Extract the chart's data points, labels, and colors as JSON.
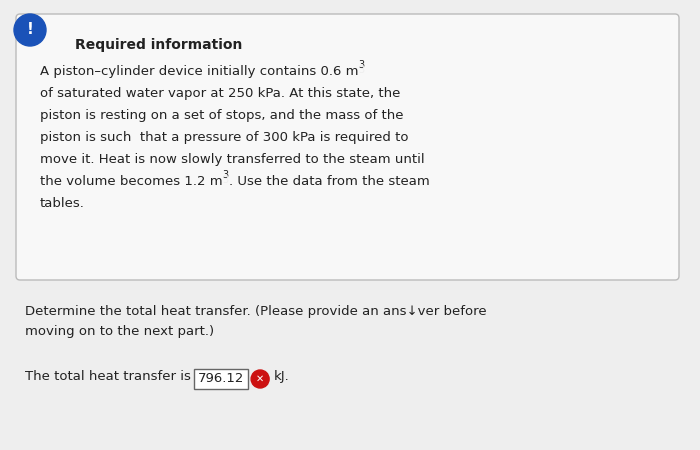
{
  "bg_color": "#eeeeee",
  "box_bg_color": "#f8f8f8",
  "box_border_color": "#bbbbbb",
  "icon_color": "#1a52b8",
  "icon_text_color": "#ffffff",
  "required_info_title": "Required information",
  "required_info_title_color": "#222222",
  "box_text_lines": [
    [
      "A piston–cylinder device initially contains 0.6 m",
      "3",
      ""
    ],
    [
      "of saturated water vapor at 250 kPa. At this state, the",
      "",
      ""
    ],
    [
      "piston is resting on a set of stops, and the mass of the",
      "",
      ""
    ],
    [
      "piston is such  that a pressure of 300 kPa is required to",
      "",
      ""
    ],
    [
      "move it. Heat is now slowly transferred to the steam until",
      "",
      ""
    ],
    [
      "the volume becomes 1.2 m",
      "3",
      ". Use the data from the steam"
    ],
    [
      "tables.",
      "",
      ""
    ]
  ],
  "question_line1": "Determine the total heat transfer. (Please provide an ans↓ver before",
  "question_line2": "moving on to the next part.)",
  "answer_prefix": "The total heat transfer is ",
  "answer_value": "796.12",
  "answer_suffix": "kJ.",
  "answer_box_color": "#ffffff",
  "answer_box_border": "#666666",
  "x_icon_color": "#cc1111",
  "text_color": "#222222",
  "font_size_body": 9.5,
  "font_size_title": 10.0,
  "font_size_super": 7.0
}
